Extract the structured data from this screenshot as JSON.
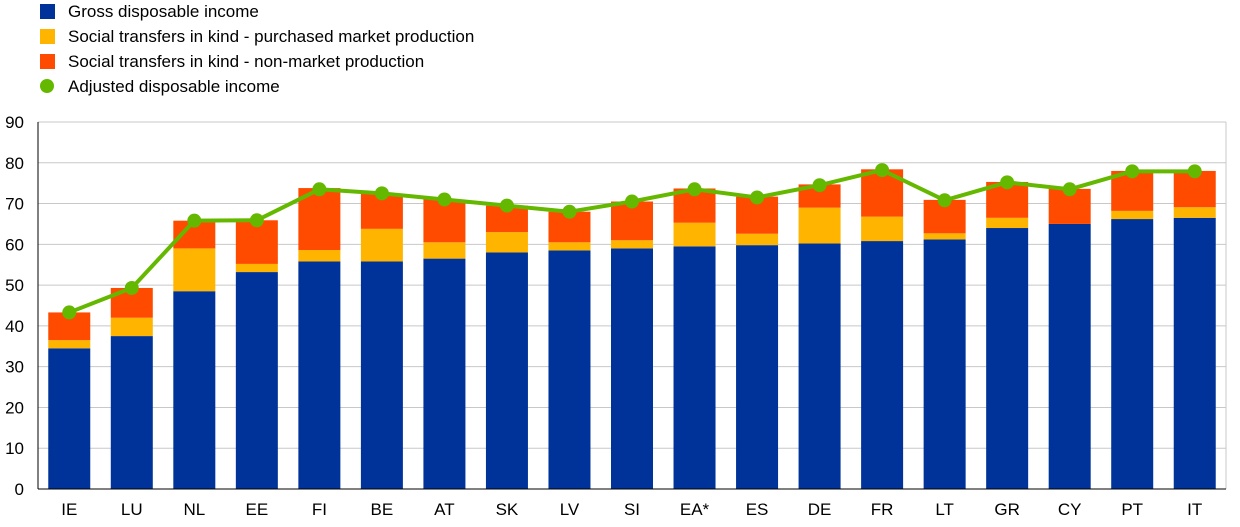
{
  "chart_data": {
    "type": "bar",
    "stacked": true,
    "title": "",
    "xlabel": "",
    "ylabel": "",
    "ylim": [
      0,
      90
    ],
    "yticks": [
      0,
      10,
      20,
      30,
      40,
      50,
      60,
      70,
      80,
      90
    ],
    "grid": "horizontal",
    "legend_position": "top-left",
    "categories": [
      "IE",
      "LU",
      "NL",
      "EE",
      "FI",
      "BE",
      "AT",
      "SK",
      "LV",
      "SI",
      "EA*",
      "ES",
      "DE",
      "FR",
      "LT",
      "GR",
      "CY",
      "PT",
      "IT"
    ],
    "series": [
      {
        "name": "Gross disposable income",
        "kind": "bar",
        "color": "#003399",
        "values": [
          34.5,
          37.5,
          48.5,
          53.2,
          55.8,
          55.8,
          56.5,
          58.0,
          58.5,
          59.0,
          59.5,
          59.8,
          60.2,
          60.8,
          61.2,
          64.0,
          65.0,
          66.2,
          66.5
        ]
      },
      {
        "name": "Social transfers in kind - purchased market production",
        "kind": "bar",
        "color": "#FFB400",
        "values": [
          2.0,
          4.5,
          10.5,
          2.0,
          2.8,
          8.0,
          4.0,
          5.0,
          2.0,
          2.0,
          5.8,
          2.8,
          8.8,
          6.0,
          1.5,
          2.5,
          0.0,
          2.0,
          2.6
        ]
      },
      {
        "name": "Social transfers in kind - non-market production",
        "kind": "bar",
        "color": "#FF4B00",
        "values": [
          6.8,
          7.3,
          6.8,
          10.7,
          15.2,
          8.6,
          10.5,
          6.5,
          7.5,
          9.5,
          8.4,
          9.1,
          5.7,
          11.6,
          8.2,
          8.8,
          8.6,
          9.8,
          8.9
        ]
      },
      {
        "name": "Adjusted disposable income",
        "kind": "line",
        "color": "#65B800",
        "values": [
          43.3,
          49.3,
          65.8,
          65.9,
          73.5,
          72.5,
          71.0,
          69.5,
          68.0,
          70.5,
          73.5,
          71.5,
          74.5,
          78.2,
          70.8,
          75.2,
          73.5,
          77.9,
          77.9
        ]
      }
    ]
  }
}
